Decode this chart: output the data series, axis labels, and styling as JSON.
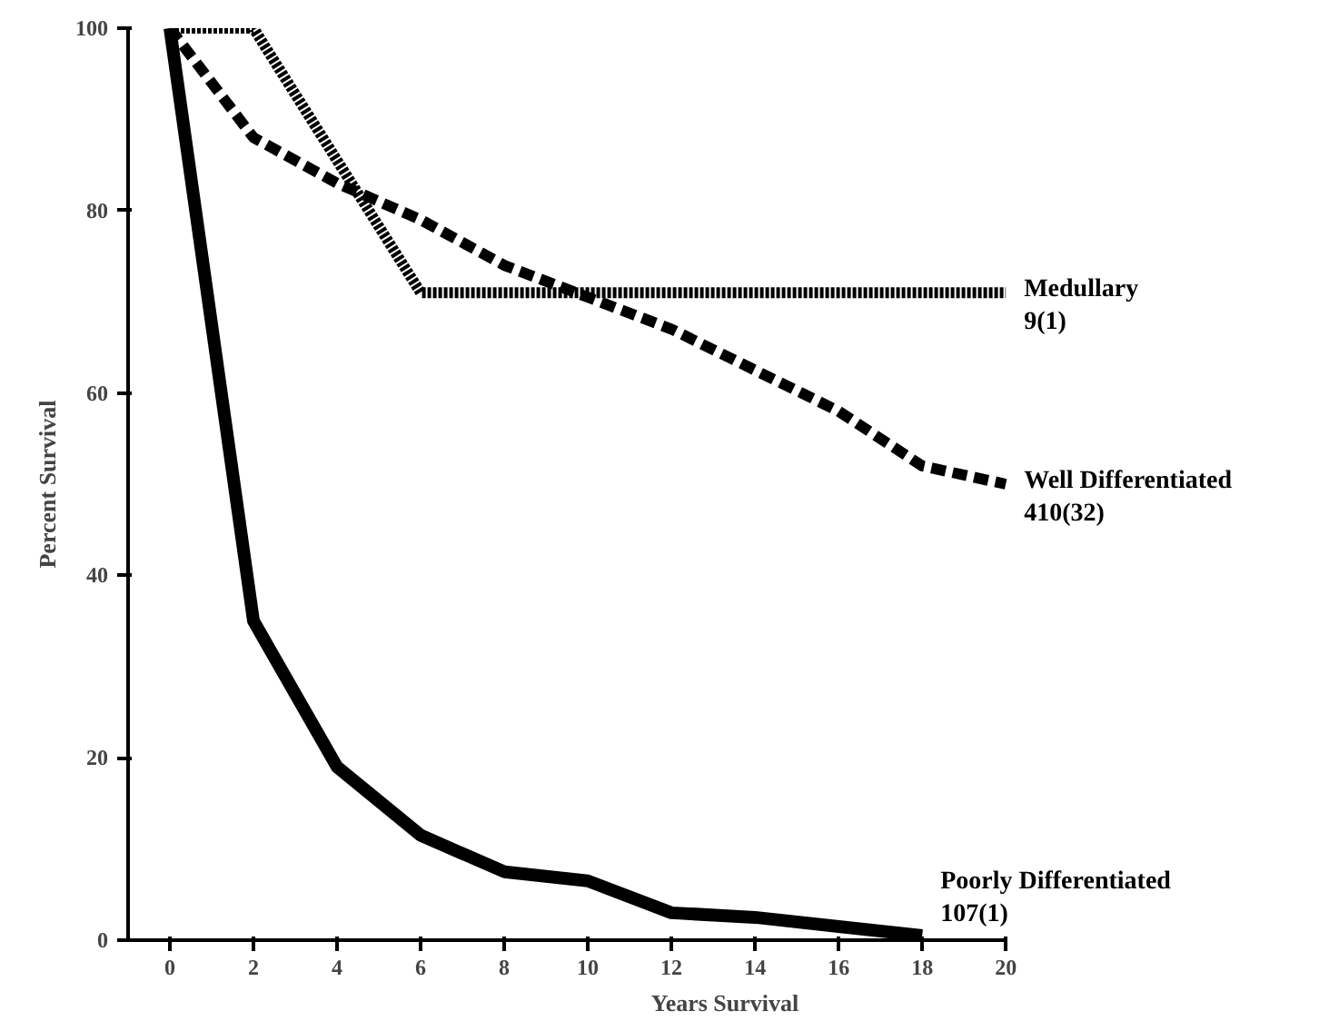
{
  "chart_data": {
    "type": "line",
    "xlabel": "Years Survival",
    "ylabel": "Percent Survival",
    "xlim": [
      -1,
      20
    ],
    "ylim": [
      0,
      100
    ],
    "xticks": [
      0,
      2,
      4,
      6,
      8,
      10,
      12,
      14,
      16,
      18,
      20
    ],
    "yticks": [
      0,
      20,
      40,
      60,
      80,
      100
    ],
    "grid": false,
    "marker": "none",
    "series": [
      {
        "name": "Medullary\n9(1)",
        "color": "#000000",
        "line_style": "dotted",
        "x": [
          0,
          2,
          6,
          20
        ],
        "values": [
          100,
          100,
          71,
          71
        ]
      },
      {
        "name": "Well Differentiated\n410(32)",
        "color": "#000000",
        "line_style": "dashed",
        "x": [
          0,
          2,
          4,
          6,
          8,
          10,
          12,
          14,
          16,
          18,
          20
        ],
        "values": [
          100,
          88,
          83,
          79,
          74,
          70.5,
          67,
          62.5,
          58,
          52,
          50
        ]
      },
      {
        "name": "Poorly Differentiated\n107(1)",
        "color": "#000000",
        "line_style": "solid",
        "x": [
          0,
          2,
          4,
          6,
          8,
          10,
          12,
          14,
          16,
          18
        ],
        "values": [
          100,
          35,
          19,
          11.5,
          7.5,
          6.5,
          3,
          2.5,
          1.5,
          0.5
        ]
      }
    ]
  }
}
